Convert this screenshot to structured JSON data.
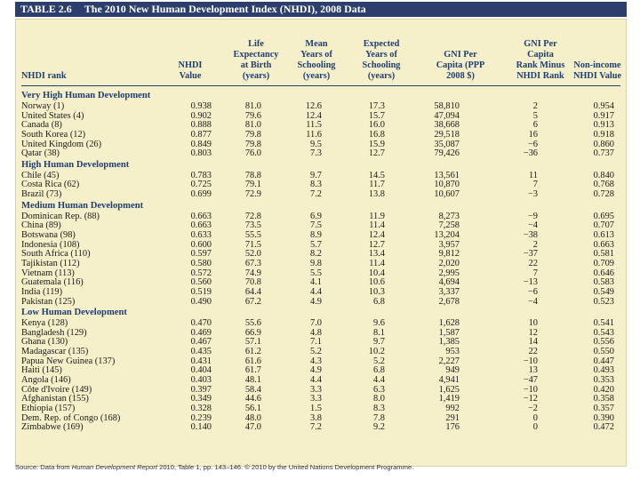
{
  "table": {
    "number": "TABLE 2.6",
    "title": "The 2010 New Human Development Index (NHDI), 2008 Data",
    "columns": [
      "NHDI rank",
      "NHDI\nValue",
      "Life\nExpectancy\nat Birth\n(years)",
      "Mean\nYears of\nSchooling\n(years)",
      "Expected\nYears of\nSchooling\n(years)",
      "GNI Per\nCapita (PPP\n2008 $)",
      "GNI Per\nCapita\nRank Minus\nNHDI Rank",
      "Non-income\nNHDI Value"
    ],
    "sections": [
      {
        "label": "Very High Human Development",
        "rows": [
          [
            "Norway (1)",
            "0.938",
            "81.0",
            "12.6",
            "17.3",
            "58,810",
            "2",
            "0.954"
          ],
          [
            "United States (4)",
            "0.902",
            "79.6",
            "12.4",
            "15.7",
            "47,094",
            "5",
            "0.917"
          ],
          [
            "Canada (8)",
            "0.888",
            "81.0",
            "11.5",
            "16.0",
            "38,668",
            "6",
            "0.913"
          ],
          [
            "South Korea (12)",
            "0.877",
            "79.8",
            "11.6",
            "16.8",
            "29,518",
            "16",
            "0.918"
          ],
          [
            "United Kingdom (26)",
            "0.849",
            "79.8",
            "9.5",
            "15.9",
            "35,087",
            "−6",
            "0.860"
          ],
          [
            "Qatar (38)",
            "0.803",
            "76.0",
            "7.3",
            "12.7",
            "79,426",
            "−36",
            "0.737"
          ]
        ]
      },
      {
        "label": "High Human Development",
        "rows": [
          [
            "Chile (45)",
            "0.783",
            "78.8",
            "9.7",
            "14.5",
            "13,561",
            "11",
            "0.840"
          ],
          [
            "Costa Rica (62)",
            "0.725",
            "79.1",
            "8.3",
            "11.7",
            "10,870",
            "7",
            "0.768"
          ],
          [
            "Brazil (73)",
            "0.699",
            "72.9",
            "7.2",
            "13.8",
            "10,607",
            "−3",
            "0.728"
          ]
        ]
      },
      {
        "label": "Medium Human Development",
        "rows": [
          [
            "Dominican Rep. (88)",
            "0.663",
            "72.8",
            "6.9",
            "11.9",
            "8,273",
            "−9",
            "0.695"
          ],
          [
            "China (89)",
            "0.663",
            "73.5",
            "7.5",
            "11.4",
            "7,258",
            "−4",
            "0.707"
          ],
          [
            "Botswana (98)",
            "0.633",
            "55.5",
            "8.9",
            "12.4",
            "13,204",
            "−38",
            "0.613"
          ],
          [
            "Indonesia (108)",
            "0.600",
            "71.5",
            "5.7",
            "12.7",
            "3,957",
            "2",
            "0.663"
          ],
          [
            "South Africa (110)",
            "0.597",
            "52.0",
            "8.2",
            "13.4",
            "9,812",
            "−37",
            "0.581"
          ],
          [
            "Tajikistan (112)",
            "0.580",
            "67.3",
            "9.8",
            "11.4",
            "2,020",
            "22",
            "0.709"
          ],
          [
            "Vietnam (113)",
            "0.572",
            "74.9",
            "5.5",
            "10.4",
            "2,995",
            "7",
            "0.646"
          ],
          [
            "Guatemala (116)",
            "0.560",
            "70.8",
            "4.1",
            "10.6",
            "4,694",
            "−13",
            "0.583"
          ],
          [
            "India (119)",
            "0.519",
            "64.4",
            "4.4",
            "10.3",
            "3,337",
            "−6",
            "0.549"
          ],
          [
            "Pakistan (125)",
            "0.490",
            "67.2",
            "4.9",
            "6.8",
            "2,678",
            "−4",
            "0.523"
          ]
        ]
      },
      {
        "label": "Low Human Development",
        "rows": [
          [
            "Kenya (128)",
            "0.470",
            "55.6",
            "7.0",
            "9.6",
            "1,628",
            "10",
            "0.541"
          ],
          [
            "Bangladesh (129)",
            "0.469",
            "66.9",
            "4.8",
            "8.1",
            "1,587",
            "12",
            "0.543"
          ],
          [
            "Ghana (130)",
            "0.467",
            "57.1",
            "7.1",
            "9.7",
            "1,385",
            "14",
            "0.556"
          ],
          [
            "Madagascar (135)",
            "0.435",
            "61.2",
            "5.2",
            "10.2",
            "953",
            "22",
            "0.550"
          ],
          [
            "Papua New Guinea (137)",
            "0.431",
            "61.6",
            "4.3",
            "5.2",
            "2,227",
            "−10",
            "0.447"
          ],
          [
            "Haiti (145)",
            "0.404",
            "61.7",
            "4.9",
            "6.8",
            "949",
            "13",
            "0.493"
          ],
          [
            "Angola (146)",
            "0.403",
            "48.1",
            "4.4",
            "4.4",
            "4,941",
            "−47",
            "0.353"
          ],
          [
            "Côte d'Ivoire (149)",
            "0.397",
            "58.4",
            "3.3",
            "6.3",
            "1,625",
            "−10",
            "0.420"
          ],
          [
            "Afghanistan (155)",
            "0.349",
            "44.6",
            "3.3",
            "8.0",
            "1,419",
            "−12",
            "0.358"
          ],
          [
            "Ethiopia (157)",
            "0.328",
            "56.1",
            "1.5",
            "8.3",
            "992",
            "−2",
            "0.357"
          ],
          [
            "Dem. Rep. of Congo (168)",
            "0.239",
            "48.0",
            "3.8",
            "7.8",
            "291",
            "0",
            "0.390"
          ],
          [
            "Zimbabwe (169)",
            "0.140",
            "47.0",
            "7.2",
            "9.2",
            "176",
            "0",
            "0.472"
          ]
        ]
      }
    ],
    "source": {
      "prefix": "Source: Data from ",
      "report": "Human Development Report",
      "suffix": " 2010, Table 1, pp. 143–146. © 2010 by the United Nations Development Programme."
    }
  },
  "colors": {
    "title_bar": "#2c3e6b",
    "table_bg": "#f5f0c9",
    "header_text": "#1f3f72"
  }
}
